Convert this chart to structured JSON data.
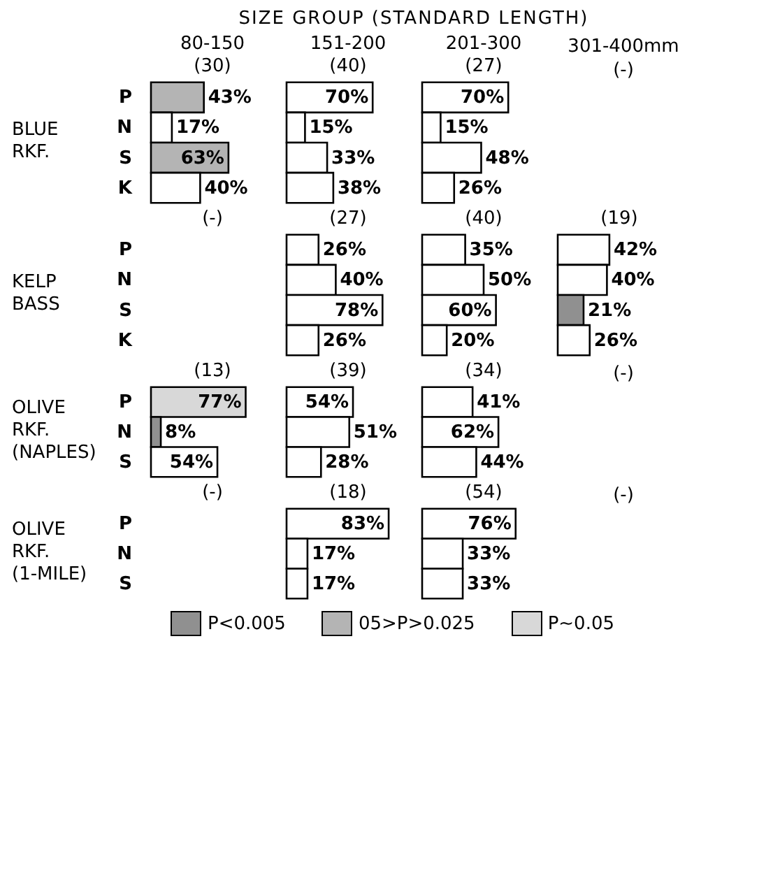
{
  "chart_data": [
    {
      "type": "other",
      "title": "SIZE GROUP (STANDARD LENGTH)"
    },
    {
      "type": "bar",
      "orientation": "horizontal",
      "title": "80-150",
      "subtitle": "(30)",
      "ylabel": "BLUE RKF.",
      "categories": [
        "P",
        "N",
        "S",
        "K"
      ],
      "values": [
        43,
        17,
        63,
        40
      ],
      "colors": [
        "#b4b4b4",
        "#ffffff",
        "#b4b4b4",
        "#ffffff"
      ],
      "value_labels": [
        "43%",
        "17%",
        "63%",
        "40%"
      ],
      "xlim": [
        0,
        100
      ],
      "tick_labels": "y"
    },
    {
      "type": "bar",
      "orientation": "horizontal",
      "title": "151-200",
      "subtitle": "(40)",
      "categories": [
        null,
        null,
        null,
        null
      ],
      "values": [
        70,
        15,
        33,
        38
      ],
      "colors": [
        "#ffffff",
        "#ffffff",
        "#ffffff",
        "#ffffff"
      ],
      "value_labels": [
        "70%",
        "15%",
        "33%",
        "38%"
      ],
      "xlim": [
        0,
        100
      ],
      "tick_labels": false
    },
    {
      "type": "bar",
      "orientation": "horizontal",
      "title": "201-300",
      "subtitle": "(27)",
      "categories": [
        null,
        null,
        null,
        null
      ],
      "values": [
        70,
        15,
        48,
        26
      ],
      "colors": [
        "#ffffff",
        "#ffffff",
        "#ffffff",
        "#ffffff"
      ],
      "value_labels": [
        "70%",
        "15%",
        "48%",
        "26%"
      ],
      "xlim": [
        0,
        100
      ],
      "tick_labels": false
    },
    {
      "type": "other",
      "title": "301-400mm",
      "subtitle": "(-)"
    },
    {
      "type": "other",
      "title": "(-)",
      "ylabel": "KELP BASS",
      "categories": [
        "P",
        "N",
        "S",
        "K"
      ]
    },
    {
      "type": "bar",
      "orientation": "horizontal",
      "title": "(27)",
      "categories": [
        null,
        null,
        null,
        null
      ],
      "values": [
        26,
        40,
        78,
        26
      ],
      "colors": [
        "#ffffff",
        "#ffffff",
        "#ffffff",
        "#ffffff"
      ],
      "value_labels": [
        "26%",
        "40%",
        "78%",
        "26%"
      ],
      "xlim": [
        0,
        100
      ],
      "tick_labels": false
    },
    {
      "type": "bar",
      "orientation": "horizontal",
      "title": "(40)",
      "categories": [
        null,
        null,
        null,
        null
      ],
      "values": [
        35,
        50,
        60,
        20
      ],
      "colors": [
        "#ffffff",
        "#ffffff",
        "#ffffff",
        "#ffffff"
      ],
      "value_labels": [
        "35%",
        "50%",
        "60%",
        "20%"
      ],
      "xlim": [
        0,
        100
      ],
      "tick_labels": false
    },
    {
      "type": "bar",
      "orientation": "horizontal",
      "title": "(19)",
      "categories": [
        null,
        null,
        null,
        null
      ],
      "values": [
        42,
        40,
        21,
        26
      ],
      "colors": [
        "#ffffff",
        "#ffffff",
        "#909090",
        "#ffffff"
      ],
      "value_labels": [
        "42%",
        "40%",
        "21%",
        "26%"
      ],
      "xlim": [
        0,
        100
      ],
      "tick_labels": false
    },
    {
      "type": "bar",
      "orientation": "horizontal",
      "title": "(13)",
      "ylabel": "OLIVE RKF. (NAPLES)",
      "categories": [
        "P",
        "N",
        "S"
      ],
      "values": [
        77,
        8,
        54
      ],
      "colors": [
        "#d8d8d8",
        "#909090",
        "#ffffff"
      ],
      "value_labels": [
        "77%",
        "8%",
        "54%"
      ],
      "xlim": [
        0,
        100
      ],
      "tick_labels": "y"
    },
    {
      "type": "bar",
      "orientation": "horizontal",
      "title": "(39)",
      "categories": [
        null,
        null,
        null
      ],
      "values": [
        54,
        51,
        28
      ],
      "colors": [
        "#ffffff",
        "#ffffff",
        "#ffffff"
      ],
      "value_labels": [
        "54%",
        "51%",
        "28%"
      ],
      "xlim": [
        0,
        100
      ],
      "tick_labels": false
    },
    {
      "type": "bar",
      "orientation": "horizontal",
      "title": "(34)",
      "categories": [
        null,
        null,
        null
      ],
      "values": [
        41,
        62,
        44
      ],
      "colors": [
        "#ffffff",
        "#ffffff",
        "#ffffff"
      ],
      "value_labels": [
        "41%",
        "62%",
        "44%"
      ],
      "xlim": [
        0,
        100
      ],
      "tick_labels": false
    },
    {
      "type": "other",
      "title": "(-)"
    },
    {
      "type": "other",
      "title": "(-)",
      "ylabel": "OLIVE RKF. (1-MILE)",
      "categories": [
        "P",
        "N",
        "S"
      ]
    },
    {
      "type": "bar",
      "orientation": "horizontal",
      "title": "(18)",
      "categories": [
        null,
        null,
        null
      ],
      "values": [
        83,
        17,
        17
      ],
      "colors": [
        "#ffffff",
        "#ffffff",
        "#ffffff"
      ],
      "value_labels": [
        "83%",
        "17%",
        "17%"
      ],
      "xlim": [
        0,
        100
      ],
      "tick_labels": false
    },
    {
      "type": "bar",
      "orientation": "horizontal",
      "title": "(54)",
      "categories": [
        null,
        null,
        null
      ],
      "values": [
        76,
        33,
        33
      ],
      "colors": [
        "#ffffff",
        "#ffffff",
        "#ffffff"
      ],
      "value_labels": [
        "76%",
        "33%",
        "33%"
      ],
      "xlim": [
        0,
        100
      ],
      "tick_labels": false
    },
    {
      "type": "other",
      "title": "(-)"
    },
    {
      "type": "other",
      "categories": [
        "P<0.005",
        "05>P>0.025",
        "P~0.05"
      ],
      "colors": [
        "#909090",
        "#b4b4b4",
        "#d8d8d8"
      ]
    }
  ]
}
